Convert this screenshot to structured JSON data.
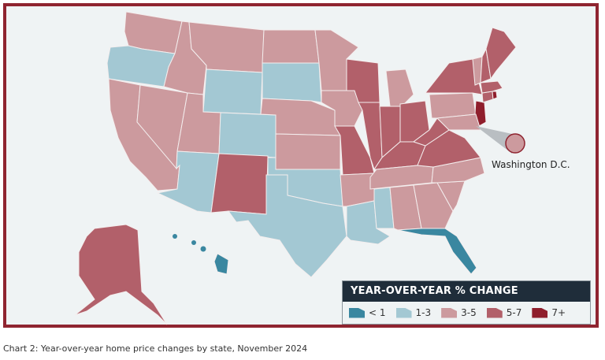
{
  "legend": {
    "title": "YEAR-OVER-YEAR % CHANGE",
    "bins": [
      {
        "label": "< 1",
        "color": "#3a87a0"
      },
      {
        "label": "1-3",
        "color": "#a3c8d3"
      },
      {
        "label": "3-5",
        "color": "#cc9a9e"
      },
      {
        "label": "5-7",
        "color": "#b2606a"
      },
      {
        "label": "7+",
        "color": "#8f1e2c"
      }
    ]
  },
  "dc_label": "Washington D.C.",
  "caption": "Chart 2:  Year-over-year home price changes by state, November 2024",
  "states": {
    "WA": "3-5",
    "OR": "1-3",
    "CA": "3-5",
    "NV": "3-5",
    "ID": "3-5",
    "MT": "3-5",
    "WY": "1-3",
    "UT": "3-5",
    "AZ": "1-3",
    "CO": "1-3",
    "NM": "5-7",
    "ND": "3-5",
    "SD": "1-3",
    "NE": "3-5",
    "KS": "3-5",
    "OK": "1-3",
    "TX": "1-3",
    "MN": "3-5",
    "IA": "3-5",
    "MO": "5-7",
    "AR": "3-5",
    "LA": "1-3",
    "WI": "5-7",
    "IL": "5-7",
    "MI": "3-5",
    "IN": "5-7",
    "OH": "5-7",
    "KY": "5-7",
    "TN": "3-5",
    "MS": "1-3",
    "AL": "3-5",
    "GA": "3-5",
    "FL": "< 1",
    "SC": "3-5",
    "NC": "3-5",
    "VA": "5-7",
    "WV": "5-7",
    "PA": "3-5",
    "NY": "5-7",
    "NJ": "7+",
    "MD": "3-5",
    "CT": "5-7",
    "RI": "7+",
    "MA": "5-7",
    "VT": "3-5",
    "NH": "5-7",
    "ME": "5-7",
    "AK": "5-7",
    "HI": "< 1",
    "DC": "3-5"
  }
}
